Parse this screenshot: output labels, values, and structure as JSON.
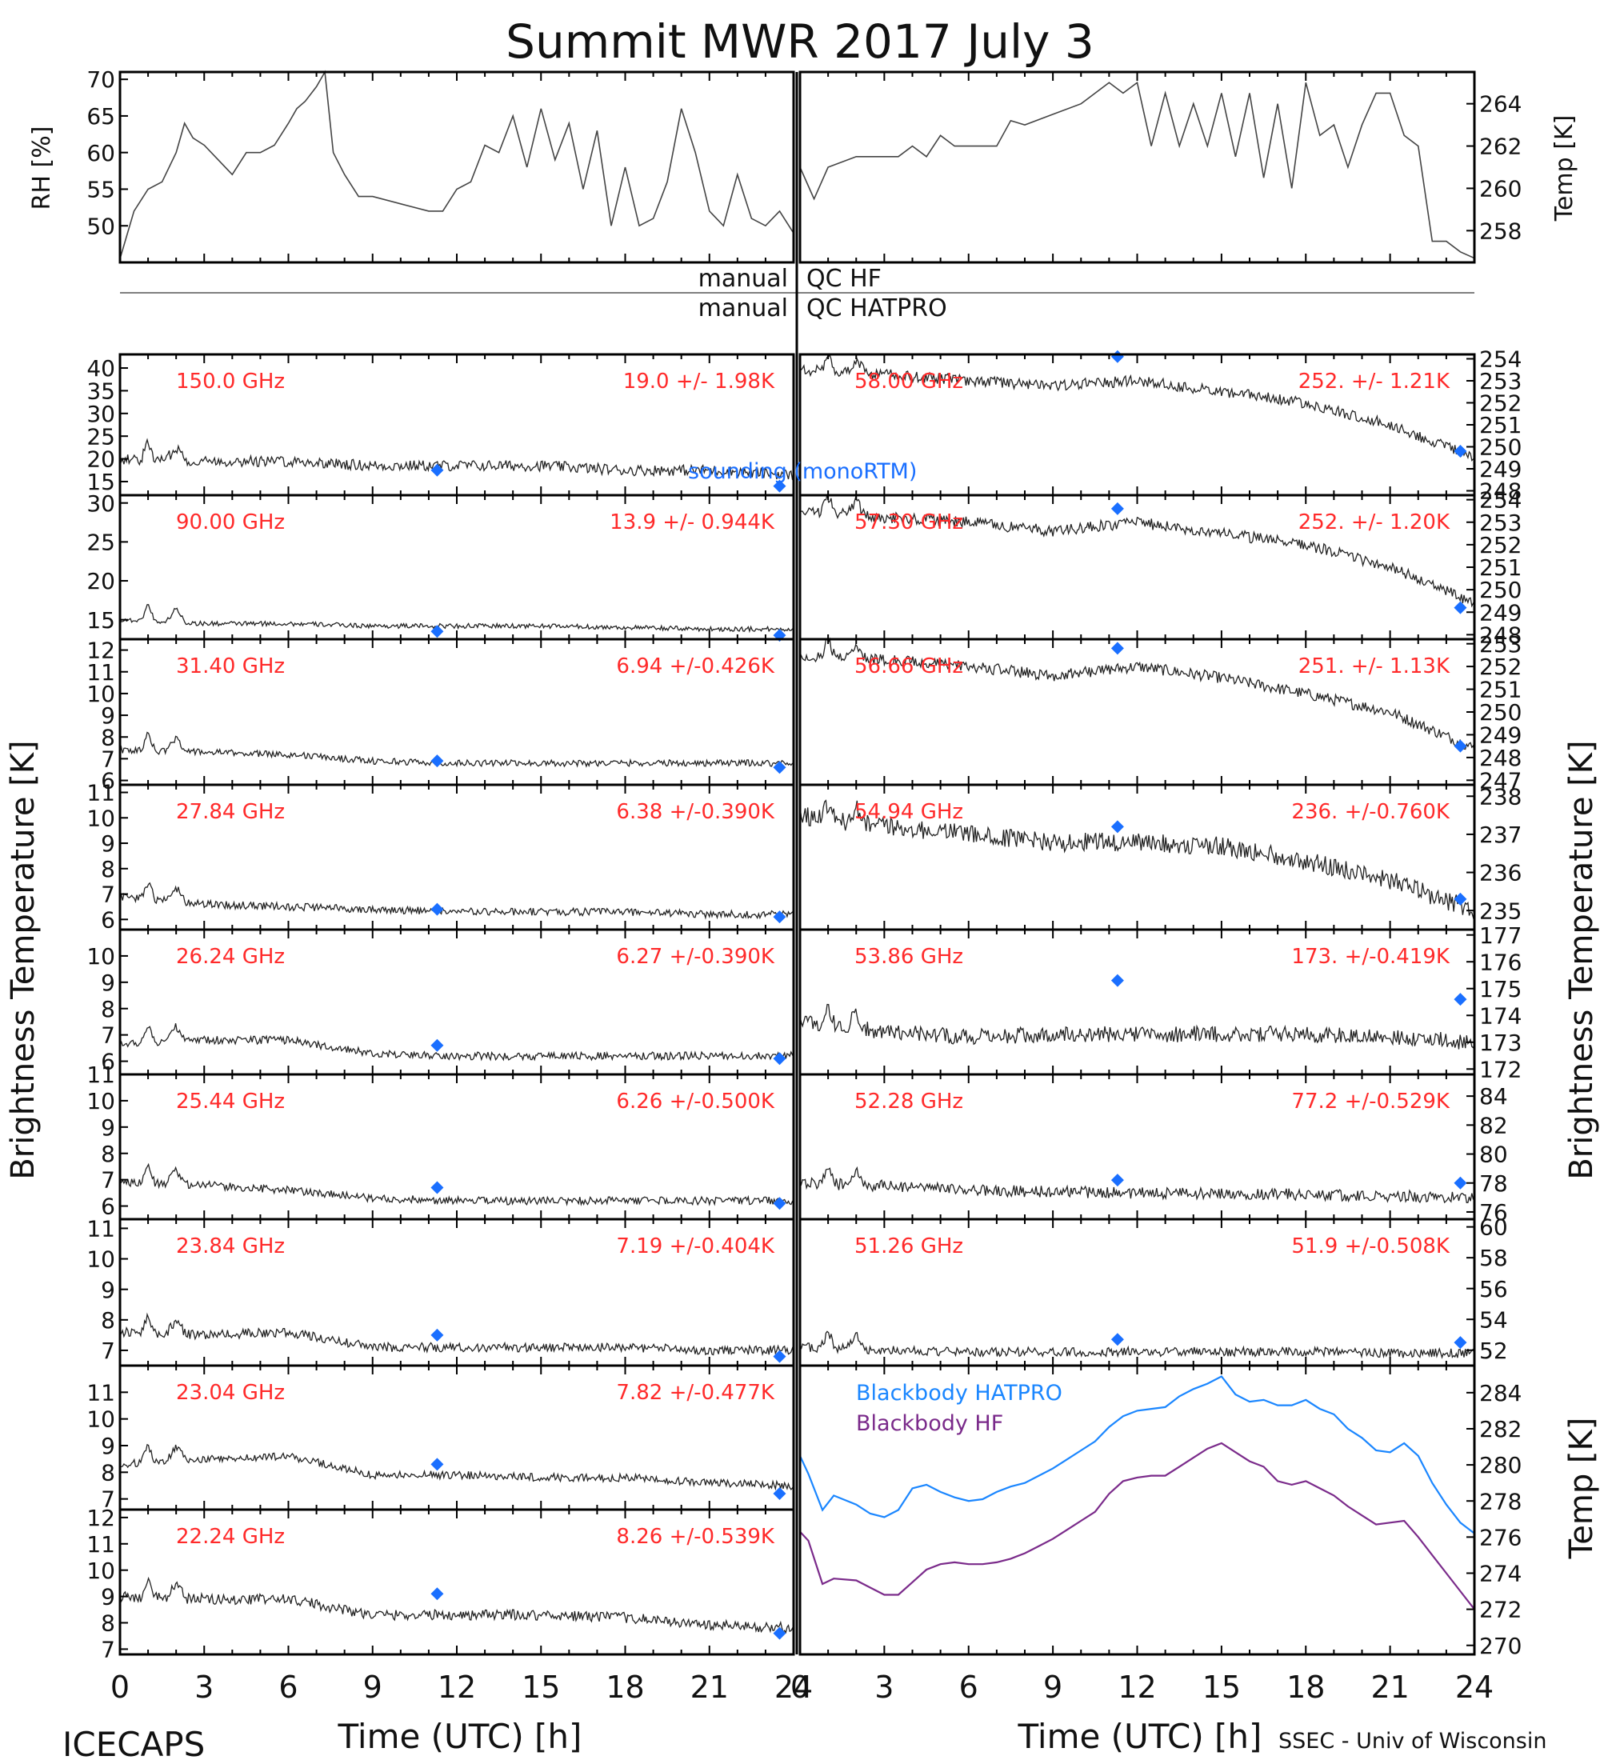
{
  "title": "Summit MWR 2017 July  3",
  "footer_left": "ICECAPS",
  "footer_right": "SSEC - Univ of Wisconsin",
  "colors": {
    "label_red": "#ff2a2a",
    "sounding_blue": "#1a6fff",
    "blackbody_hatpro": "#1a86ff",
    "blackbody_hf": "#7a2a8a"
  },
  "labels": {
    "rh_axis": "RH [%]",
    "temp_axis": "Temp [K]",
    "bt_axis": "Brightness Temperature [K]",
    "time_axis": "Time (UTC) [h]",
    "qc_hf_left": "manual",
    "qc_hf_right": "QC HF",
    "qc_hatpro_left": "manual",
    "qc_hatpro_right": "QC HATPRO",
    "sounding": "sounding (monoRTM)",
    "bb_hatpro": "Blackbody HATPRO",
    "bb_hf": "Blackbody HF"
  },
  "chart_data": {
    "type": "line",
    "x_ticks": [
      "0",
      "3",
      "6",
      "9",
      "12",
      "15",
      "18",
      "21",
      "24"
    ],
    "xlim": [
      0,
      24
    ],
    "met": {
      "rh": {
        "ylim": [
          45,
          71
        ],
        "ticks": [
          "50",
          "55",
          "60",
          "65",
          "70"
        ],
        "x": [
          0,
          0.5,
          1,
          1.5,
          2,
          2.3,
          2.6,
          3,
          3.5,
          4,
          4.5,
          5,
          5.5,
          6,
          6.3,
          6.6,
          7,
          7.3,
          7.6,
          8,
          8.5,
          9,
          10,
          11,
          11.5,
          12,
          12.5,
          13,
          13.5,
          14,
          14.5,
          15,
          15.5,
          16,
          16.5,
          17,
          17.5,
          18,
          18.5,
          19,
          19.5,
          20,
          20.5,
          21,
          21.5,
          22,
          22.5,
          23,
          23.5,
          24
        ],
        "y": [
          45.5,
          52,
          55,
          56,
          60,
          64,
          62,
          61,
          59,
          57,
          60,
          60,
          61,
          64,
          66,
          67,
          69,
          71,
          60,
          57,
          54,
          54,
          53,
          52,
          52,
          55,
          56,
          61,
          60,
          65,
          58,
          66,
          59,
          64,
          55,
          63,
          50,
          58,
          50,
          51,
          56,
          66,
          60,
          52,
          50,
          57,
          51,
          50,
          52,
          49
        ]
      },
      "temp": {
        "ylim": [
          256.5,
          265.5
        ],
        "ticks": [
          "258",
          "260",
          "262",
          "264"
        ],
        "x": [
          0,
          0.5,
          1,
          2,
          3,
          3.5,
          4,
          4.5,
          5,
          5.5,
          6,
          7,
          7.5,
          8,
          9,
          10,
          11,
          11.5,
          12,
          12.5,
          13,
          13.5,
          14,
          14.5,
          15,
          15.5,
          16,
          16.5,
          17,
          17.5,
          18,
          18.5,
          19,
          19.5,
          20,
          20.5,
          21,
          21.5,
          22,
          22.5,
          23,
          23.5,
          24
        ],
        "y": [
          261,
          259.5,
          261,
          261.5,
          261.5,
          261.5,
          262,
          261.5,
          262.5,
          262,
          262,
          262,
          263.2,
          263,
          263.5,
          264,
          265,
          264.5,
          265,
          262,
          264.5,
          262,
          264,
          262,
          264.5,
          261.5,
          264.5,
          260.5,
          264,
          260,
          265,
          262.5,
          263,
          261,
          263,
          264.5,
          264.5,
          262.5,
          262,
          257.5,
          257.5,
          257,
          256.7
        ]
      }
    },
    "channels_left": [
      {
        "freq": "150.0 GHz",
        "stats": "19.0 +/-  1.98K",
        "ylim": [
          12,
          43
        ],
        "ticks": [
          "15",
          "20",
          "25",
          "30",
          "35",
          "40"
        ],
        "base": [
          20,
          19.5,
          19.5,
          18.5,
          18.5,
          18.5,
          17.5,
          17.5,
          16.5
        ],
        "noise": 1.2,
        "sounding": [
          17.5,
          14
        ]
      },
      {
        "freq": "90.00 GHz",
        "stats": "13.9 +/- 0.944K",
        "ylim": [
          12.5,
          31
        ],
        "ticks": [
          "15",
          "20",
          "25",
          "30"
        ],
        "base": [
          15,
          14.5,
          14.5,
          14.2,
          14.2,
          14.2,
          14,
          13.8,
          13.8
        ],
        "noise": 0.3,
        "sounding": [
          13.5,
          13
        ]
      },
      {
        "freq": "31.40 GHz",
        "stats": "6.94 +/-0.426K",
        "ylim": [
          5.8,
          12.5
        ],
        "ticks": [
          "6",
          "7",
          "8",
          "9",
          "10",
          "11",
          "12"
        ],
        "base": [
          7.4,
          7.3,
          7.2,
          6.9,
          6.8,
          6.8,
          6.8,
          6.8,
          6.8
        ],
        "noise": 0.15,
        "sounding": [
          6.9,
          6.6
        ]
      },
      {
        "freq": "27.84 GHz",
        "stats": "6.38 +/-0.390K",
        "ylim": [
          5.6,
          11.3
        ],
        "ticks": [
          "6",
          "7",
          "8",
          "9",
          "10",
          "11"
        ],
        "base": [
          6.9,
          6.6,
          6.5,
          6.4,
          6.3,
          6.3,
          6.3,
          6.2,
          6.2
        ],
        "noise": 0.15,
        "sounding": [
          6.4,
          6.1
        ]
      },
      {
        "freq": "26.24 GHz",
        "stats": "6.27 +/-0.390K",
        "ylim": [
          5.5,
          11
        ],
        "ticks": [
          "6",
          "7",
          "8",
          "9",
          "10"
        ],
        "base": [
          6.7,
          6.8,
          6.8,
          6.3,
          6.2,
          6.2,
          6.2,
          6.2,
          6.2
        ],
        "noise": 0.15,
        "sounding": [
          6.6,
          6.1
        ]
      },
      {
        "freq": "25.44 GHz",
        "stats": "6.26 +/-0.500K",
        "ylim": [
          5.5,
          11
        ],
        "ticks": [
          "6",
          "7",
          "8",
          "9",
          "10",
          "11"
        ],
        "base": [
          6.9,
          6.8,
          6.6,
          6.3,
          6.2,
          6.2,
          6.2,
          6.2,
          6.2
        ],
        "noise": 0.15,
        "sounding": [
          6.7,
          6.1
        ]
      },
      {
        "freq": "23.84 GHz",
        "stats": "7.19 +/-0.404K",
        "ylim": [
          6.5,
          11.3
        ],
        "ticks": [
          "7",
          "8",
          "9",
          "10",
          "11"
        ],
        "base": [
          7.6,
          7.5,
          7.6,
          7.1,
          7.1,
          7.1,
          7.1,
          7.0,
          7.0
        ],
        "noise": 0.15,
        "sounding": [
          7.5,
          6.8
        ]
      },
      {
        "freq": "23.04 GHz",
        "stats": "7.82 +/-0.477K",
        "ylim": [
          6.6,
          12
        ],
        "ticks": [
          "7",
          "8",
          "9",
          "10",
          "11"
        ],
        "base": [
          8.3,
          8.5,
          8.6,
          7.9,
          7.9,
          7.8,
          7.8,
          7.6,
          7.5
        ],
        "noise": 0.15,
        "sounding": [
          8.3,
          7.2
        ]
      },
      {
        "freq": "22.24 GHz",
        "stats": "8.26 +/-0.539K",
        "ylim": [
          6.8,
          12.3
        ],
        "ticks": [
          "7",
          "8",
          "9",
          "10",
          "11",
          "12"
        ],
        "base": [
          9.0,
          8.9,
          8.9,
          8.3,
          8.3,
          8.3,
          8.2,
          7.9,
          7.8
        ],
        "noise": 0.2,
        "sounding": [
          9.1,
          7.6
        ]
      }
    ],
    "channels_right": [
      {
        "freq": "58.00 GHz",
        "stats": "252. +/- 1.21K",
        "ylim": [
          247.8,
          254.2
        ],
        "ticks": [
          "248",
          "249",
          "250",
          "251",
          "252",
          "253",
          "254"
        ],
        "base": [
          253.5,
          253.3,
          253,
          252.8,
          253,
          252.5,
          252,
          251,
          249.5
        ],
        "noise": 0.25,
        "sounding": [
          254.1,
          249.8
        ]
      },
      {
        "freq": "57.30 GHz",
        "stats": "252. +/- 1.20K",
        "ylim": [
          247.8,
          254.2
        ],
        "ticks": [
          "248",
          "249",
          "250",
          "251",
          "252",
          "253",
          "254"
        ],
        "base": [
          253.5,
          253.2,
          253,
          252.6,
          253,
          252.5,
          252,
          251,
          249.4
        ],
        "noise": 0.25,
        "sounding": [
          253.6,
          249.2
        ]
      },
      {
        "freq": "56.66 GHz",
        "stats": "251. +/- 1.13K",
        "ylim": [
          246.8,
          253.2
        ],
        "ticks": [
          "247",
          "248",
          "249",
          "250",
          "251",
          "252",
          "253"
        ],
        "base": [
          252.5,
          252.3,
          252,
          251.6,
          252,
          251.5,
          250.8,
          250,
          248.4
        ],
        "noise": 0.25,
        "sounding": [
          252.8,
          248.5
        ]
      },
      {
        "freq": "54.94 GHz",
        "stats": "236. +/-0.760K",
        "ylim": [
          234.5,
          238.3
        ],
        "ticks": [
          "235",
          "236",
          "237",
          "238"
        ],
        "base": [
          237.5,
          237.2,
          237,
          236.8,
          236.8,
          236.7,
          236.3,
          235.8,
          235
        ],
        "noise": 0.25,
        "sounding": [
          237.2,
          235.3
        ]
      },
      {
        "freq": "53.86 GHz",
        "stats": "173. +/-0.419K",
        "ylim": [
          171.8,
          177.2
        ],
        "ticks": [
          "172",
          "173",
          "174",
          "175",
          "176",
          "177"
        ],
        "base": [
          173.8,
          173.4,
          173.2,
          173.3,
          173.3,
          173.3,
          173.3,
          173.2,
          173.0
        ],
        "noise": 0.3,
        "sounding": [
          175.3,
          174.6
        ]
      },
      {
        "freq": "52.28 GHz",
        "stats": "77.2 +/-0.529K",
        "ylim": [
          75.5,
          85.5
        ],
        "ticks": [
          "76",
          "78",
          "80",
          "82",
          "84"
        ],
        "base": [
          78,
          77.8,
          77.5,
          77.4,
          77.3,
          77.3,
          77.2,
          77.1,
          77
        ],
        "noise": 0.4,
        "sounding": [
          78.2,
          78
        ]
      },
      {
        "freq": "51.26 GHz",
        "stats": "51.9 +/-0.508K",
        "ylim": [
          51,
          60.5
        ],
        "ticks": [
          "52",
          "54",
          "56",
          "58",
          "60"
        ],
        "base": [
          52.2,
          52,
          51.9,
          51.9,
          51.9,
          51.9,
          51.9,
          51.8,
          51.8
        ],
        "noise": 0.3,
        "sounding": [
          52.7,
          52.5
        ]
      }
    ],
    "sounding_times": [
      11.3,
      23.5
    ],
    "blackbody": {
      "ylim": [
        269.5,
        285.5
      ],
      "ticks": [
        "270",
        "272",
        "274",
        "276",
        "278",
        "280",
        "282",
        "284"
      ],
      "series": [
        {
          "name": "Blackbody HATPRO",
          "x": [
            0,
            0.3,
            0.8,
            1.2,
            2,
            2.5,
            3,
            3.5,
            4,
            4.5,
            5,
            5.5,
            6,
            6.5,
            7,
            7.5,
            8,
            8.5,
            9,
            9.5,
            10,
            10.5,
            11,
            11.5,
            12,
            12.5,
            13,
            13.5,
            14,
            14.5,
            15,
            15.5,
            16,
            16.5,
            17,
            17.5,
            18,
            18.5,
            19,
            19.5,
            20,
            20.5,
            21,
            21.5,
            22,
            22.5,
            23,
            23.5,
            24
          ],
          "y": [
            280.5,
            279.5,
            277.5,
            278.3,
            277.8,
            277.3,
            277.1,
            277.5,
            278.7,
            278.9,
            278.5,
            278.2,
            278.0,
            278.1,
            278.5,
            278.8,
            279.0,
            279.4,
            279.8,
            280.3,
            280.8,
            281.3,
            282.1,
            282.7,
            283.0,
            283.1,
            283.2,
            283.8,
            284.2,
            284.5,
            284.9,
            283.9,
            283.5,
            283.6,
            283.3,
            283.3,
            283.6,
            283.1,
            282.8,
            282.0,
            281.5,
            280.8,
            280.7,
            281.2,
            280.5,
            279.0,
            277.8,
            276.8,
            276.2
          ]
        },
        {
          "name": "Blackbody HF",
          "x": [
            0,
            0.3,
            0.8,
            1.2,
            2,
            2.5,
            3,
            3.5,
            4,
            4.5,
            5,
            5.5,
            6,
            6.5,
            7,
            7.5,
            8,
            8.5,
            9,
            9.5,
            10,
            10.5,
            11,
            11.5,
            12,
            12.5,
            13,
            13.5,
            14,
            14.5,
            15,
            15.5,
            16,
            16.5,
            17,
            17.5,
            18,
            18.5,
            19,
            19.5,
            20,
            20.5,
            21,
            21.5,
            22,
            22.5,
            23,
            23.5,
            24
          ],
          "y": [
            276.3,
            275.8,
            273.4,
            273.7,
            273.6,
            273.2,
            272.8,
            272.8,
            273.5,
            274.2,
            274.5,
            274.6,
            274.5,
            274.5,
            274.6,
            274.8,
            275.1,
            275.5,
            275.9,
            276.4,
            276.9,
            277.4,
            278.4,
            279.1,
            279.3,
            279.4,
            279.4,
            279.9,
            280.4,
            280.9,
            281.2,
            280.7,
            280.2,
            279.9,
            279.1,
            278.9,
            279.1,
            278.7,
            278.3,
            277.7,
            277.2,
            276.7,
            276.8,
            276.9,
            276.0,
            275.0,
            274.0,
            273.0,
            272.0
          ]
        }
      ]
    }
  }
}
